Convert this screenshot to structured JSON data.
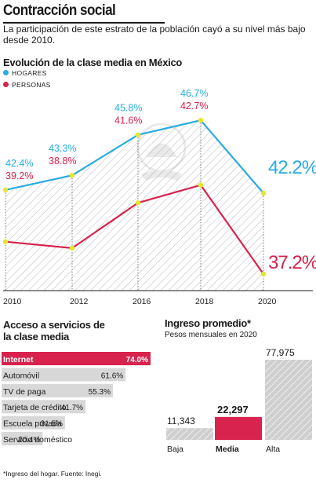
{
  "header": {
    "title": "Contracción social",
    "subtitle": "La participación de este estrato de la población cayó a su nivel más bajo desde 2010."
  },
  "colors": {
    "hogares": "#29abe2",
    "personas": "#d7234d",
    "markers": "#e4e62f",
    "hbar": "#d8d8d8",
    "vbar": "#a8a8a8",
    "highlight": "#d7234d"
  },
  "chart_data": [
    {
      "type": "line",
      "title": "Evolución de la clase media en México",
      "x": [
        "2010",
        "2012",
        "2016",
        "2018",
        "2020"
      ],
      "series": [
        {
          "name": "HOGARES",
          "values": [
            42.4,
            43.3,
            45.8,
            46.7,
            42.2
          ],
          "labels": [
            "42.4%",
            "43.3%",
            "45.8%",
            "46.7%",
            "42.2%"
          ]
        },
        {
          "name": "PERSONAS",
          "values": [
            39.2,
            38.8,
            41.6,
            42.7,
            37.2
          ],
          "labels": [
            "39.2%",
            "38.8%",
            "41.6%",
            "42.7%",
            "37.2%"
          ]
        }
      ],
      "grid": "vertical dotted lines at each year",
      "legend": "top-left"
    },
    {
      "type": "bar",
      "orientation": "horizontal",
      "title": "Acceso a servicios de la clase media",
      "categories": [
        "Internet",
        "Automóvil",
        "TV de paga",
        "Tarjeta de crédito",
        "Escuela privada",
        "Servicio doméstico"
      ],
      "values": [
        74.0,
        61.6,
        55.3,
        41.7,
        31.5,
        20.4
      ],
      "labels": [
        "74.0%",
        "61.6%",
        "55.3%",
        "41.7%",
        "31.5%",
        "20.4%"
      ],
      "highlight": "Internet"
    },
    {
      "type": "bar",
      "title": "Ingreso promedio*",
      "subtitle": "Pesos mensuales en 2020",
      "categories": [
        "Baja",
        "Media",
        "Alta"
      ],
      "values": [
        11343,
        22297,
        77975
      ],
      "labels": [
        "11,343",
        "22,297",
        "77,975"
      ],
      "highlight": "Media"
    }
  ],
  "footnote": "*Ingreso del hogar. Fuente: Inegi."
}
